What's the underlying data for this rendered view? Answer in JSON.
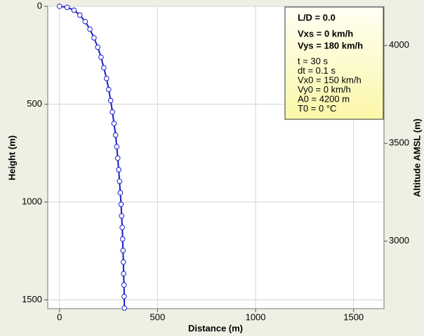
{
  "chart_data": {
    "type": "line",
    "xlabel": "Distance (m)",
    "ylabel": "Height (m)",
    "y2label": "Altitude AMSL (m)",
    "x": [
      0,
      39,
      74,
      104,
      131,
      155,
      176,
      195,
      212,
      226,
      240,
      251,
      261,
      270,
      278,
      286,
      292,
      297,
      302,
      306,
      310,
      314,
      317,
      320,
      322,
      324,
      326,
      327,
      329,
      330,
      331
    ],
    "values": [
      0,
      5,
      20,
      45,
      78,
      117,
      161,
      209,
      260,
      314,
      369,
      425,
      482,
      540,
      599,
      658,
      717,
      776,
      835,
      894,
      953,
      1012,
      1071,
      1130,
      1189,
      1248,
      1307,
      1366,
      1424,
      1483,
      1542
    ],
    "color": "#1a1acc",
    "xlim": [
      -60,
      1655
    ],
    "xticks": [
      0,
      500,
      1000,
      1500
    ],
    "ylim": [
      1545,
      0
    ],
    "yticks": [
      0,
      500,
      1000,
      1500
    ],
    "y2lim": [
      2655,
      4200
    ],
    "y2ticks": [
      3000,
      3500,
      4000
    ],
    "grid": true,
    "annotations": [
      "L/D = 0.0",
      "Vxs = 0 km/h",
      "Vys = 180 km/h",
      "t = 30 s",
      "dt = 0.1 s",
      "Vx0 = 150 km/h",
      "Vy0 = 0 km/h",
      "A0 = 4200 m",
      "T0 = 0 °C"
    ]
  }
}
